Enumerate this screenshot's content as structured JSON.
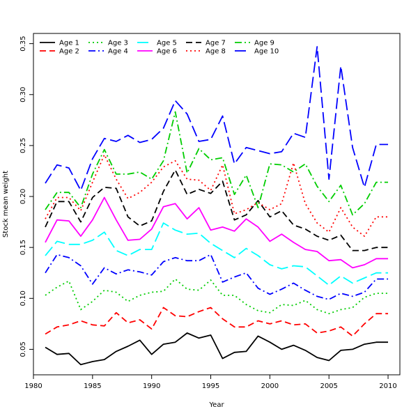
{
  "chart_data": {
    "type": "line",
    "title": "",
    "xlabel": "Year",
    "ylabel": "Stock mean weight",
    "xlim": [
      1980,
      2011
    ],
    "ylim": [
      0.025,
      0.36
    ],
    "x_ticks": [
      1980,
      1985,
      1990,
      1995,
      2000,
      2005,
      2010
    ],
    "y_ticks": [
      0.05,
      0.1,
      0.15,
      0.2,
      0.25,
      0.3,
      0.35
    ],
    "x_tick_labels": [
      "1980",
      "1985",
      "1990",
      "1995",
      "2000",
      "2005",
      "2010"
    ],
    "y_tick_labels": [
      "0.05",
      "0.10",
      "0.15",
      "0.20",
      "0.25",
      "0.30",
      "0.35"
    ],
    "grid": false,
    "legend_position": "top-left",
    "x": [
      1981,
      1982,
      1983,
      1984,
      1985,
      1986,
      1987,
      1988,
      1989,
      1990,
      1991,
      1992,
      1993,
      1994,
      1995,
      1996,
      1997,
      1998,
      1999,
      2000,
      2001,
      2002,
      2003,
      2004,
      2005,
      2006,
      2007,
      2008,
      2009,
      2010
    ],
    "series": [
      {
        "name": "Age 1",
        "color": "#000000",
        "dash": "solid",
        "values": [
          0.052,
          0.045,
          0.046,
          0.035,
          0.038,
          0.04,
          0.048,
          0.053,
          0.059,
          0.045,
          0.055,
          0.057,
          0.066,
          0.061,
          0.064,
          0.041,
          0.047,
          0.048,
          0.063,
          0.057,
          0.05,
          0.054,
          0.049,
          0.042,
          0.039,
          0.049,
          0.05,
          0.055,
          0.057,
          0.057
        ]
      },
      {
        "name": "Age 2",
        "color": "#ff0000",
        "dash": "dashed",
        "values": [
          0.065,
          0.072,
          0.074,
          0.078,
          0.074,
          0.073,
          0.086,
          0.076,
          0.079,
          0.07,
          0.091,
          0.083,
          0.082,
          0.087,
          0.091,
          0.08,
          0.072,
          0.072,
          0.078,
          0.075,
          0.078,
          0.074,
          0.075,
          0.066,
          0.068,
          0.072,
          0.063,
          0.075,
          0.085,
          0.085
        ]
      },
      {
        "name": "Age 3",
        "color": "#00cd00",
        "dash": "dotted",
        "values": [
          0.103,
          0.111,
          0.117,
          0.089,
          0.097,
          0.108,
          0.106,
          0.097,
          0.103,
          0.106,
          0.107,
          0.119,
          0.109,
          0.108,
          0.118,
          0.103,
          0.103,
          0.094,
          0.088,
          0.086,
          0.094,
          0.093,
          0.098,
          0.089,
          0.085,
          0.089,
          0.091,
          0.101,
          0.105,
          0.105
        ]
      },
      {
        "name": "Age 4",
        "color": "#0000ff",
        "dash": "dashdot",
        "values": [
          0.125,
          0.143,
          0.14,
          0.132,
          0.114,
          0.13,
          0.124,
          0.128,
          0.126,
          0.123,
          0.136,
          0.14,
          0.137,
          0.137,
          0.143,
          0.116,
          0.121,
          0.125,
          0.11,
          0.104,
          0.109,
          0.115,
          0.108,
          0.102,
          0.099,
          0.105,
          0.102,
          0.106,
          0.119,
          0.119
        ]
      },
      {
        "name": "Age 5",
        "color": "#00ffff",
        "dash": "longdash",
        "values": [
          0.142,
          0.156,
          0.153,
          0.153,
          0.157,
          0.165,
          0.147,
          0.142,
          0.148,
          0.148,
          0.174,
          0.167,
          0.163,
          0.164,
          0.154,
          0.147,
          0.14,
          0.149,
          0.142,
          0.133,
          0.129,
          0.132,
          0.131,
          0.122,
          0.113,
          0.122,
          0.115,
          0.12,
          0.125,
          0.125
        ]
      },
      {
        "name": "Age 6",
        "color": "#ff00ff",
        "dash": "solid",
        "values": [
          0.155,
          0.177,
          0.176,
          0.161,
          0.177,
          0.199,
          0.177,
          0.157,
          0.158,
          0.168,
          0.19,
          0.193,
          0.178,
          0.189,
          0.167,
          0.17,
          0.166,
          0.178,
          0.17,
          0.156,
          0.163,
          0.155,
          0.148,
          0.146,
          0.137,
          0.138,
          0.13,
          0.133,
          0.139,
          0.139
        ]
      },
      {
        "name": "Age 7",
        "color": "#000000",
        "dash": "dashed",
        "values": [
          0.17,
          0.195,
          0.195,
          0.175,
          0.199,
          0.209,
          0.208,
          0.18,
          0.171,
          0.176,
          0.205,
          0.226,
          0.202,
          0.207,
          0.203,
          0.215,
          0.177,
          0.182,
          0.196,
          0.18,
          0.186,
          0.172,
          0.168,
          0.161,
          0.157,
          0.162,
          0.147,
          0.147,
          0.15,
          0.15
        ]
      },
      {
        "name": "Age 8",
        "color": "#ff0000",
        "dash": "dotted",
        "values": [
          0.178,
          0.199,
          0.199,
          0.186,
          0.214,
          0.241,
          0.217,
          0.198,
          0.204,
          0.214,
          0.229,
          0.235,
          0.217,
          0.216,
          0.206,
          0.231,
          0.183,
          0.187,
          0.194,
          0.187,
          0.193,
          0.233,
          0.193,
          0.174,
          0.165,
          0.189,
          0.17,
          0.161,
          0.18,
          0.18
        ]
      },
      {
        "name": "Age 9",
        "color": "#00cd00",
        "dash": "dashdot",
        "values": [
          0.187,
          0.204,
          0.204,
          0.189,
          0.222,
          0.246,
          0.222,
          0.222,
          0.224,
          0.217,
          0.235,
          0.283,
          0.223,
          0.247,
          0.236,
          0.238,
          0.202,
          0.221,
          0.189,
          0.232,
          0.231,
          0.224,
          0.232,
          0.21,
          0.195,
          0.211,
          0.182,
          0.193,
          0.214,
          0.214
        ]
      },
      {
        "name": "Age 10",
        "color": "#0000ff",
        "dash": "longdash",
        "values": [
          0.213,
          0.231,
          0.228,
          0.206,
          0.237,
          0.257,
          0.254,
          0.26,
          0.253,
          0.256,
          0.267,
          0.294,
          0.281,
          0.254,
          0.256,
          0.279,
          0.232,
          0.248,
          0.245,
          0.242,
          0.244,
          0.262,
          0.258,
          0.347,
          0.217,
          0.328,
          0.248,
          0.209,
          0.251,
          0.251
        ]
      }
    ]
  }
}
